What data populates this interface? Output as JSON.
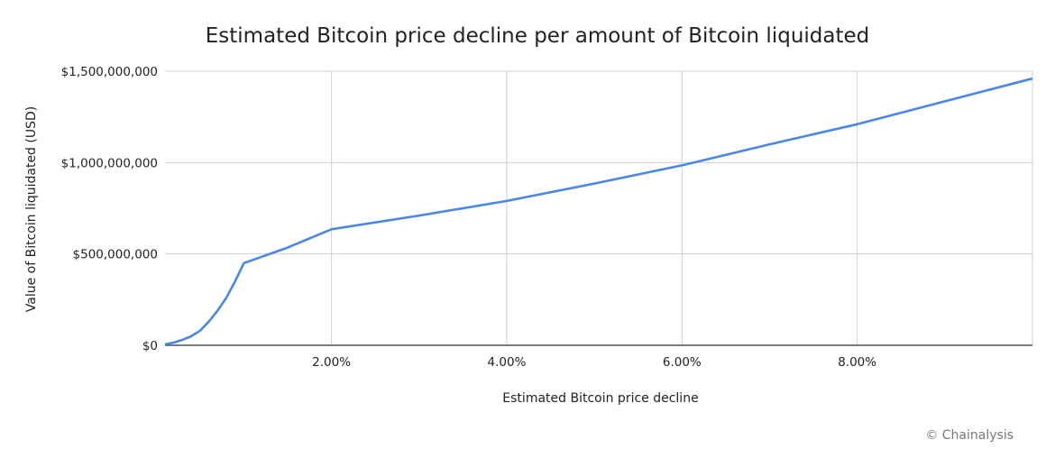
{
  "chart_data": {
    "type": "line",
    "title": "Estimated Bitcoin price decline per amount of Bitcoin liquidated",
    "xlabel": "Estimated Bitcoin price decline",
    "ylabel": "Value of Bitcoin liquidated (USD)",
    "xlim": [
      0.1,
      10.0
    ],
    "ylim": [
      0,
      1500000000
    ],
    "x_ticks": [
      2,
      4,
      6,
      8
    ],
    "x_tick_labels": [
      "2.00%",
      "4.00%",
      "6.00%",
      "8.00%"
    ],
    "y_ticks": [
      0,
      500000000,
      1000000000,
      1500000000
    ],
    "y_tick_labels": [
      "$0",
      "$500,000,000",
      "$1,000,000,000",
      "$1,500,000,000"
    ],
    "grid": true,
    "line_color": "#4a86e8",
    "series": [
      {
        "x": [
          0.1,
          0.2,
          0.3,
          0.4,
          0.5,
          0.6,
          0.7,
          0.8,
          0.9,
          1.0,
          1.5,
          2.0,
          3.0,
          4.0,
          5.0,
          6.0,
          7.0,
          8.0,
          9.0,
          10.0
        ],
        "y": [
          5000000,
          15000000,
          30000000,
          50000000,
          80000000,
          130000000,
          190000000,
          260000000,
          350000000,
          450000000,
          535000000,
          635000000,
          710000000,
          790000000,
          885000000,
          985000000,
          1100000000,
          1210000000,
          1335000000,
          1460000000
        ]
      }
    ]
  },
  "credit": "© Chainalysis"
}
